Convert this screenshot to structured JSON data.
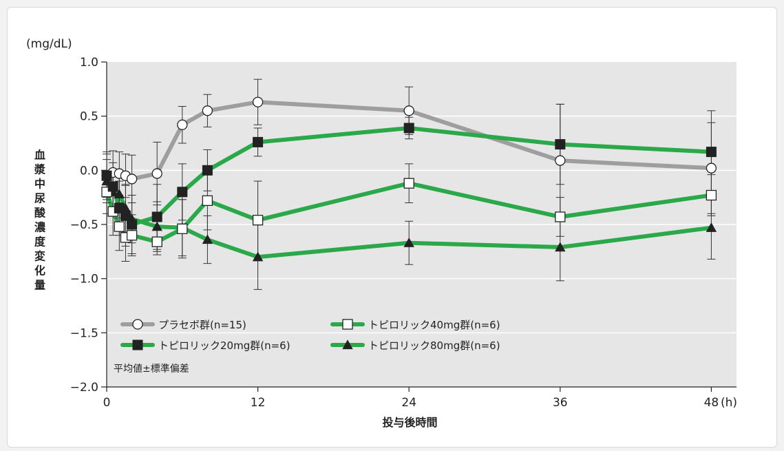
{
  "chart_data": {
    "type": "line",
    "y_unit": "(mg/dL)",
    "x_unit": "(h)",
    "xlabel": "投与後時間",
    "ylabel": "血漿中尿酸濃度変化量",
    "xlim": [
      0,
      50
    ],
    "ylim": [
      -2.0,
      1.0
    ],
    "x_ticks": [
      0,
      12,
      24,
      36,
      48
    ],
    "y_ticks": [
      1.0,
      0.5,
      0.0,
      -0.5,
      -1.0,
      -1.5,
      -2.0
    ],
    "y_tick_labels": [
      "1.0",
      "0.5",
      "0.0",
      "−0.5",
      "−1.0",
      "−1.5",
      "−2.0"
    ],
    "note": "平均値±標準偏差",
    "grid": "horizontal",
    "legend_position": "bottom-left",
    "series": [
      {
        "name": "プラセボ群(n=15)",
        "color": "#9e9e9e",
        "marker": "circle-open",
        "x": [
          0,
          0.5,
          1,
          1.5,
          2,
          4,
          6,
          8,
          12,
          24,
          36,
          48
        ],
        "y": [
          -0.05,
          -0.02,
          -0.03,
          -0.05,
          -0.08,
          -0.03,
          0.42,
          0.55,
          0.63,
          0.55,
          0.09,
          0.02
        ],
        "err": [
          0.2,
          0.2,
          0.2,
          0.2,
          0.22,
          0.29,
          0.17,
          0.15,
          0.21,
          0.22,
          0.52,
          0.42
        ]
      },
      {
        "name": "トピロリック20mg群(n=6)",
        "color": "#2aa84a",
        "marker": "square-filled",
        "x": [
          0,
          0.5,
          1,
          1.5,
          2,
          4,
          6,
          8,
          12,
          24,
          36,
          48
        ],
        "y": [
          -0.05,
          -0.15,
          -0.35,
          -0.42,
          -0.5,
          -0.43,
          -0.2,
          0.0,
          0.26,
          0.39,
          0.24,
          0.17
        ],
        "err": [
          0.22,
          0.22,
          0.25,
          0.28,
          0.27,
          0.3,
          0.26,
          0.19,
          0.13,
          0.1,
          0.37,
          0.38
        ]
      },
      {
        "name": "トピロリック40mg群(n=6)",
        "color": "#2aa84a",
        "marker": "square-open",
        "x": [
          0,
          0.5,
          1,
          1.5,
          2,
          4,
          6,
          8,
          12,
          24,
          36,
          48
        ],
        "y": [
          -0.2,
          -0.38,
          -0.52,
          -0.62,
          -0.6,
          -0.66,
          -0.54,
          -0.28,
          -0.46,
          -0.12,
          -0.43,
          -0.23
        ],
        "err": [
          0.2,
          0.22,
          0.22,
          0.22,
          0.19,
          0.12,
          0.27,
          0.27,
          0.36,
          0.18,
          0.18,
          0.19
        ]
      },
      {
        "name": "トピロリック80mg群(n=6)",
        "color": "#2aa84a",
        "marker": "triangle-filled",
        "x": [
          0,
          0.5,
          1,
          1.5,
          2,
          4,
          6,
          8,
          12,
          24,
          36,
          48
        ],
        "y": [
          -0.1,
          -0.2,
          -0.22,
          -0.35,
          -0.45,
          -0.52,
          -0.53,
          -0.64,
          -0.8,
          -0.67,
          -0.71,
          -0.53
        ],
        "err": [
          0.2,
          0.2,
          0.22,
          0.22,
          0.22,
          0.23,
          0.26,
          0.22,
          0.3,
          0.2,
          0.31,
          0.29
        ]
      }
    ]
  }
}
